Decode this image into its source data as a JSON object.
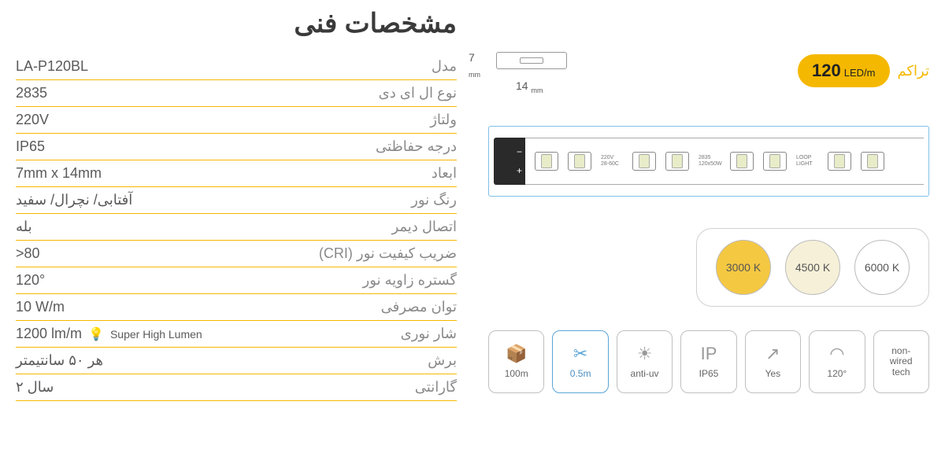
{
  "title": "مشخصات فنی",
  "specs": [
    {
      "label": "مدل",
      "value": "LA-P120BL"
    },
    {
      "label": "نوع ال ای دی",
      "value": "2835"
    },
    {
      "label": "ولتاژ",
      "value": "220V"
    },
    {
      "label": "درجه حفاظتی",
      "value": "IP65"
    },
    {
      "label": "ابعاد",
      "value": "7mm x 14mm"
    },
    {
      "label": "رنگ نور",
      "value": "آفتابی/ نچرال/ سفید"
    },
    {
      "label": "اتصال دیمر",
      "value": "بله"
    },
    {
      "label": "ضریب کیفیت نور (CRI)",
      "value": ">80"
    },
    {
      "label": "گستره زاویه نور",
      "value": "120°"
    },
    {
      "label": "توان مصرفی",
      "value": "10 W/m"
    },
    {
      "label": "شار نوری",
      "value": "1200 lm/m",
      "extra": "Super High Lumen"
    },
    {
      "label": "برش",
      "value": "هر ۵۰ سانتیمتر"
    },
    {
      "label": "گارانتی",
      "value": "۲ سال"
    }
  ],
  "crossSection": {
    "height": "7",
    "heightUnit": "mm",
    "width": "14",
    "widthUnit": "mm"
  },
  "density": {
    "number": "120",
    "unit": "LED/m",
    "label": "تراکم"
  },
  "strip": {
    "minus": "−",
    "plus": "+",
    "text1a": "220V",
    "text1b": "28-60C",
    "text2a": "2835",
    "text2b": "120x50W",
    "text3a": "LOOP",
    "text3b": "LIGHT"
  },
  "colorTemps": [
    {
      "value": "3000 K",
      "cls": "ct-3000",
      "bg": "#f5c842"
    },
    {
      "value": "4500 K",
      "cls": "ct-4500",
      "bg": "#f6f0d8"
    },
    {
      "value": "6000 K",
      "cls": "ct-6000",
      "bg": "#ffffff"
    }
  ],
  "features": [
    {
      "icon": "📦",
      "label": "100m",
      "active": false
    },
    {
      "icon": "✂",
      "label": "0.5m",
      "active": true
    },
    {
      "icon": "☀",
      "label": "anti-uv",
      "active": false
    },
    {
      "icon": "IP",
      "label": "IP65",
      "active": false
    },
    {
      "icon": "↗",
      "label": "Yes",
      "active": false
    },
    {
      "icon": "◠",
      "label": "120°",
      "active": false
    },
    {
      "icon": "",
      "label": "non-\nwired\ntech",
      "active": false
    }
  ],
  "colors": {
    "accent": "#f5b800",
    "border": "#d0d0d0",
    "text": "#5a5a5a",
    "titleText": "#3a3a3a",
    "activeBlue": "#5aa5d8"
  }
}
